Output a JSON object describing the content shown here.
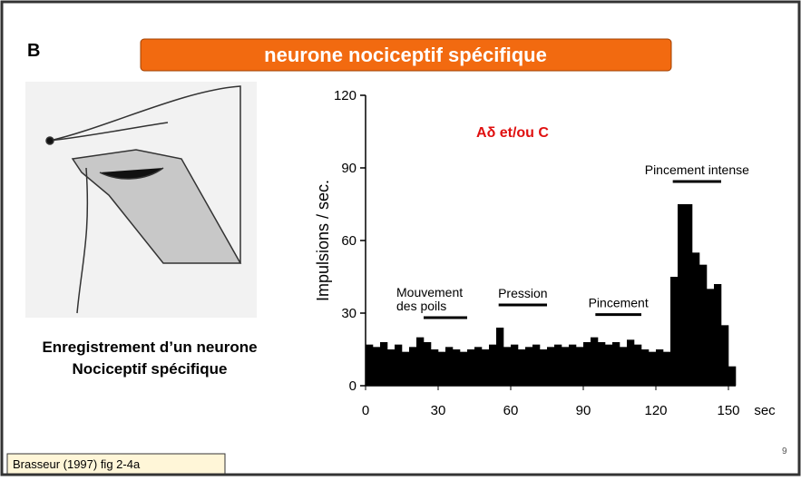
{
  "slide": {
    "label": "B",
    "title": "neurone nociceptif spécifique",
    "caption": [
      "Enregistrement d’un neurone",
      "Nociceptif spécifique"
    ],
    "citation": "Brasseur (1997) fig 2-4a",
    "page_number": "9"
  },
  "chart_data": {
    "type": "histogram",
    "y_label": "Impulsions / sec.",
    "x_label": "sec",
    "annotation": "Aδ et/ou C",
    "color": "#000000",
    "bins": [
      0,
      3,
      6,
      9,
      12,
      15,
      18,
      21,
      24,
      27,
      30,
      33,
      36,
      39,
      42,
      45,
      48,
      51,
      54,
      57,
      60,
      63,
      66,
      69,
      72,
      75,
      78,
      81,
      84,
      87,
      90,
      93,
      96,
      99,
      102,
      105,
      108,
      111,
      114,
      117,
      120,
      123,
      126,
      129,
      132,
      135,
      138,
      141,
      144,
      147,
      150,
      153
    ],
    "values": [
      17,
      16,
      18,
      15,
      17,
      14,
      16,
      20,
      18,
      15,
      14,
      16,
      15,
      14,
      15,
      16,
      15,
      17,
      24,
      16,
      17,
      15,
      16,
      17,
      15,
      16,
      17,
      16,
      17,
      16,
      18,
      20,
      18,
      17,
      18,
      16,
      19,
      17,
      15,
      14,
      15,
      14,
      45,
      75,
      75,
      55,
      50,
      40,
      42,
      25,
      8
    ],
    "xlim": [
      0,
      153
    ],
    "xticks": [
      0,
      30,
      60,
      90,
      120,
      150
    ],
    "ylim": [
      0,
      120
    ],
    "yticks": [
      0,
      30,
      60,
      90,
      120
    ],
    "stimuli": [
      {
        "label": [
          "Mouvement",
          "des poils"
        ],
        "x_range": [
          24,
          42
        ]
      },
      {
        "label": [
          "Pression"
        ],
        "x_range": [
          55,
          75
        ]
      },
      {
        "label": [
          "Pincement"
        ],
        "x_range": [
          95,
          114
        ]
      },
      {
        "label": [
          "Pincement intense"
        ],
        "x_range": [
          127,
          147
        ]
      }
    ]
  }
}
